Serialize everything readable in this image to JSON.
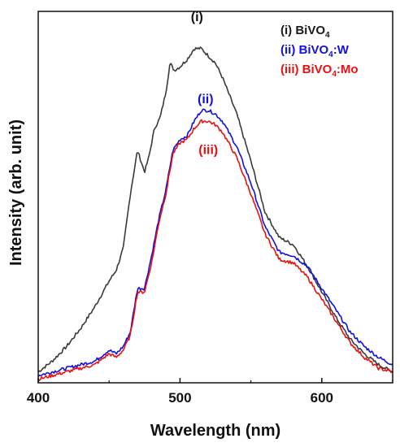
{
  "chart_data": {
    "type": "line",
    "title": "",
    "xlabel": "Wavelength (nm)",
    "ylabel": "Intensity (arb. unit)",
    "xlim": [
      400,
      650
    ],
    "ylim": [
      0,
      100
    ],
    "xticks": [
      "400",
      "500",
      "600"
    ],
    "xtick_values": [
      400,
      500,
      600
    ],
    "y_tick_labels": false,
    "grid": false,
    "legend_position": "top-right",
    "legend": [
      {
        "label": "(i) BiVO",
        "sub": "4",
        "suffix": "",
        "color": "#1a1a1a"
      },
      {
        "label": "(ii) BiVO",
        "sub": "4",
        "suffix": ":W",
        "color": "#1010e0"
      },
      {
        "label": "(iii) BiVO",
        "sub": "4",
        "suffix": ":Mo",
        "color": "#e81010"
      }
    ],
    "series": [
      {
        "name": "(i) BiVO4",
        "label": "(i)",
        "label_at": [
          512,
          99.5
        ],
        "color": "#3a3a3a",
        "x": [
          400,
          410,
          420,
          430,
          440,
          450,
          455,
          460,
          465,
          470,
          475,
          478,
          482,
          486,
          490,
          493,
          496,
          500,
          505,
          510,
          515,
          520,
          525,
          530,
          540,
          550,
          560,
          570,
          580,
          590,
          600,
          610,
          620,
          630,
          640,
          650
        ],
        "y": [
          3,
          6,
          10,
          15,
          21,
          28,
          31,
          37,
          52,
          64,
          58,
          62,
          70,
          73,
          80,
          88,
          86,
          87,
          89,
          92,
          92,
          90,
          88,
          84,
          74,
          61,
          47,
          40,
          38,
          32,
          25,
          18,
          12,
          8,
          5,
          3
        ]
      },
      {
        "name": "(ii) BiVO4:W",
        "label": "(ii)",
        "label_at": [
          518,
          77
        ],
        "color": "#1010e0",
        "x": [
          400,
          410,
          420,
          430,
          440,
          450,
          455,
          460,
          465,
          470,
          475,
          480,
          485,
          490,
          495,
          500,
          505,
          510,
          515,
          520,
          525,
          530,
          540,
          550,
          560,
          570,
          580,
          590,
          600,
          610,
          620,
          630,
          640,
          650
        ],
        "y": [
          2,
          3,
          4,
          5,
          6,
          9,
          8,
          10,
          14,
          26,
          26,
          35,
          45,
          53,
          64,
          67,
          68,
          72,
          75,
          75,
          74,
          72,
          65,
          55,
          43,
          36,
          35,
          32,
          26,
          20,
          14,
          10,
          7,
          5
        ]
      },
      {
        "name": "(iii) BiVO4:Mo",
        "label": "(iii)",
        "label_at": [
          520,
          63
        ],
        "color": "#e81010",
        "x": [
          400,
          410,
          420,
          430,
          440,
          450,
          455,
          460,
          465,
          470,
          475,
          480,
          485,
          490,
          495,
          500,
          505,
          510,
          515,
          520,
          525,
          530,
          540,
          550,
          560,
          570,
          580,
          590,
          600,
          610,
          620,
          630,
          640,
          650
        ],
        "y": [
          1,
          2,
          3,
          4,
          5,
          8,
          7,
          9,
          13,
          25,
          25,
          33,
          44,
          52,
          63,
          66,
          67,
          70,
          72,
          72,
          71,
          69,
          62,
          52,
          41,
          34,
          33,
          29,
          23,
          17,
          11,
          7,
          4,
          3
        ]
      }
    ]
  }
}
